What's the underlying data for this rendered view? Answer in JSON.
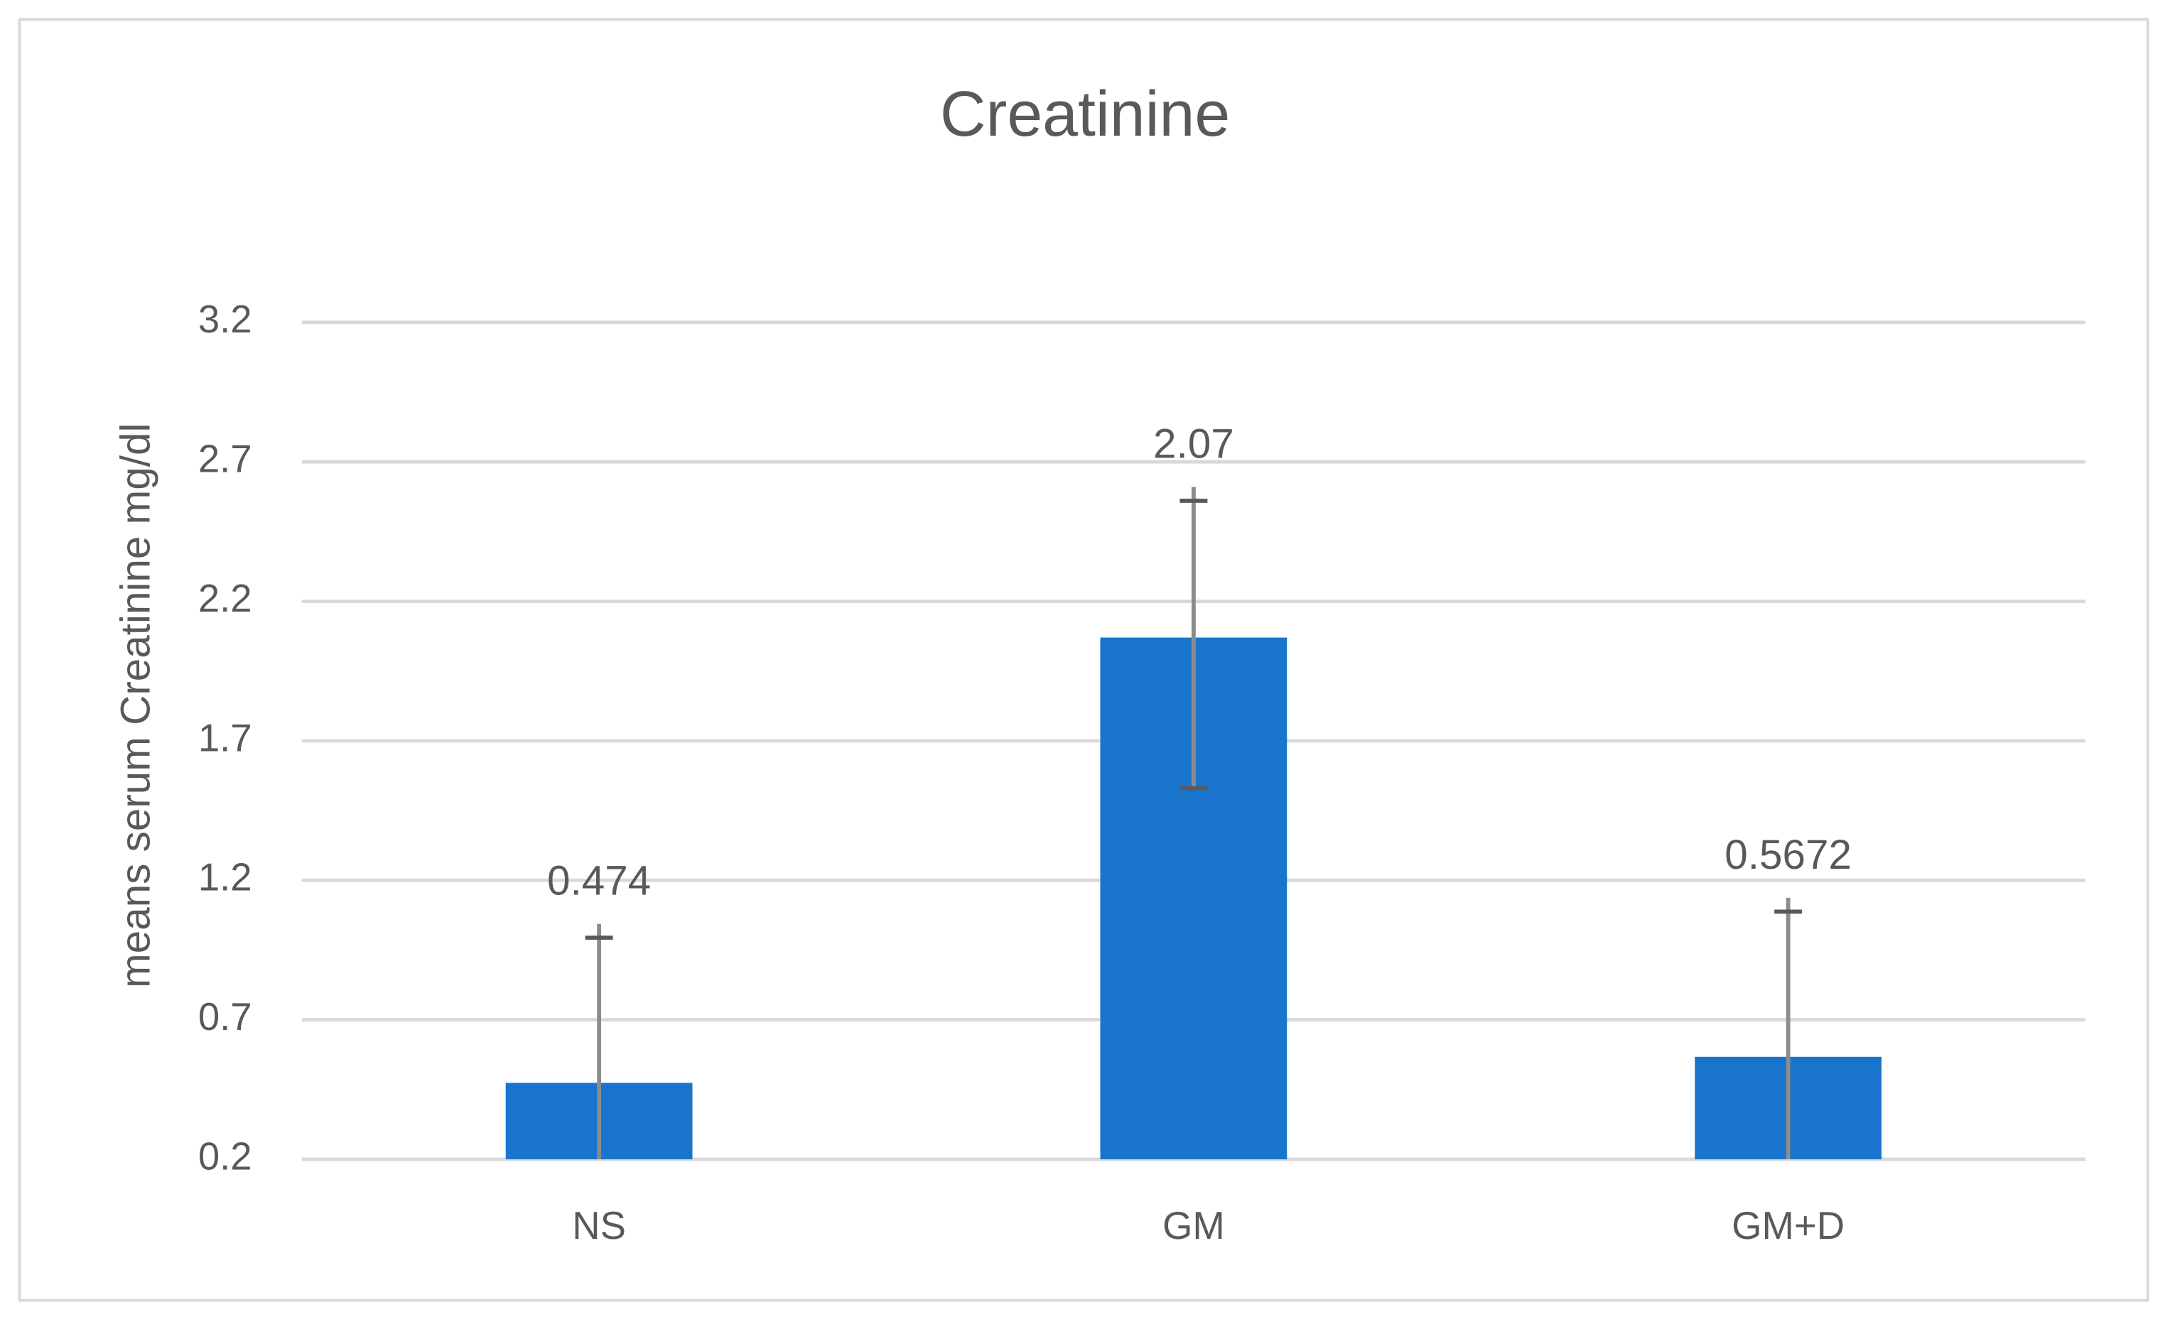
{
  "chart_data": {
    "type": "bar",
    "title": "Creatinine",
    "y_label": "means serum Creatinine mg/dl",
    "categories": [
      "NS",
      "GM",
      "GM+D"
    ],
    "values": [
      0.474,
      2.07,
      0.5672
    ],
    "errors": [
      0.57,
      0.54,
      0.57
    ],
    "color": "#1874cd",
    "ylim": [
      0.2,
      3.2
    ],
    "yticks": [
      0.2,
      0.7,
      1.2,
      1.7,
      2.2,
      2.7,
      3.2
    ],
    "grid": true
  }
}
